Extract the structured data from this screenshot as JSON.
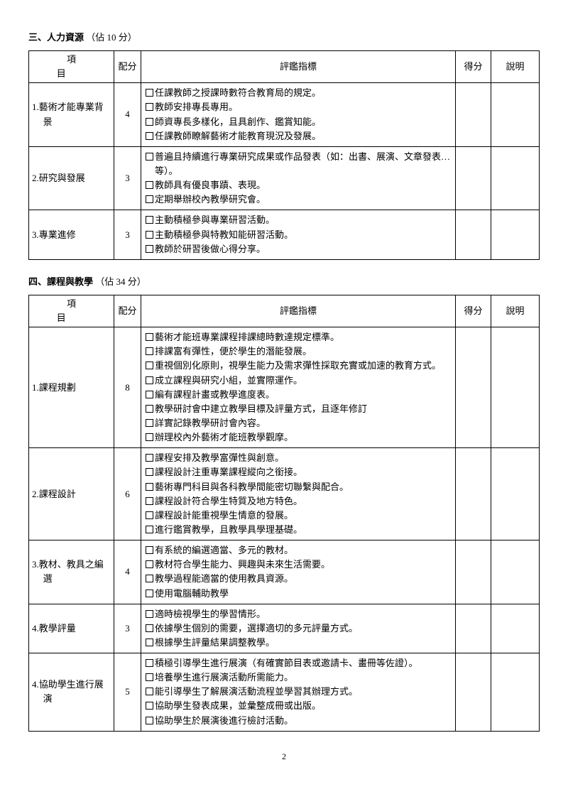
{
  "headers": {
    "item": "項目",
    "points": "配分",
    "indicator": "評鑑指標",
    "score": "得分",
    "note": "說明"
  },
  "section3": {
    "title": "三、人力資源",
    "points": "（佔 10 分）",
    "rows": [
      {
        "item": "1.藝術才能專業背景",
        "pts": "4",
        "indicators": [
          "任課教師之授課時數符合教育局的規定。",
          "教師安排專長專用。",
          "師資專長多樣化，且具創作、鑑賞知能。",
          "任課教師瞭解藝術才能教育現況及發展。"
        ]
      },
      {
        "item": "2.研究與發展",
        "pts": "3",
        "indicators": [
          "普遍且持續進行專業研究成果或作品發表（如：出書、展演、文章發表…等）。",
          "教師具有優良事蹟、表現。",
          "定期舉辦校內教學研究會。"
        ]
      },
      {
        "item": "3.專業進修",
        "pts": "3",
        "indicators": [
          "主動積極參與專業研習活動。",
          "主動積極參與特教知能研習活動。",
          "教師於研習後做心得分享。"
        ]
      }
    ]
  },
  "section4": {
    "title": "四、課程與教學",
    "points": "（佔 34 分）",
    "rows": [
      {
        "item": "1.課程規劃",
        "pts": "8",
        "indicators": [
          "藝術才能班專業課程排課總時數達規定標準。",
          "排課富有彈性，便於學生的潛能發展。",
          "重視個別化原則，視學生能力及需求彈性採取充實或加速的教育方式。",
          "成立課程與研究小組，並實際運作。",
          "編有課程計畫或教學進度表。",
          "教學研討會中建立教學目標及評量方式，且逐年修訂",
          "詳實記錄教學研討會內容。",
          "辦理校內外藝術才能班教學觀摩。"
        ]
      },
      {
        "item": "2.課程設計",
        "pts": "6",
        "indicators": [
          "課程安排及教學富彈性與創意。",
          "課程設計注重專業課程縱向之銜接。",
          "藝術專門科目與各科教學間能密切聯繫與配合。",
          "課程設計符合學生特質及地方特色。",
          "課程設計能重視學生情意的發展。",
          "進行鑑賞教學，且教學具學理基礎。"
        ]
      },
      {
        "item": "3.教材、教具之編選",
        "pts": "4",
        "indicators": [
          "有系統的編選適當、多元的教材。",
          "教材符合學生能力、興趣與未來生活需要。",
          "教學過程能適當的使用教具資源。",
          "使用電腦輔助教學"
        ]
      },
      {
        "item": "4.教學評量",
        "pts": "3",
        "indicators": [
          "適時檢視學生的學習情形。",
          "依據學生個別的需要，選擇適切的多元評量方式。",
          "根據學生評量結果調整教學。"
        ]
      },
      {
        "item": "4.協助學生進行展演",
        "pts": "5",
        "indicators": [
          "積極引導學生進行展演（有確實節目表或邀請卡、畫冊等佐證）。",
          "培養學生進行展演活動所需能力。",
          "能引導學生了解展演活動流程並學習其辦理方式。",
          "協助學生發表成果，並彙整成冊或出版。",
          "協助學生於展演後進行檢討活動。"
        ]
      }
    ]
  },
  "pageNum": "2"
}
